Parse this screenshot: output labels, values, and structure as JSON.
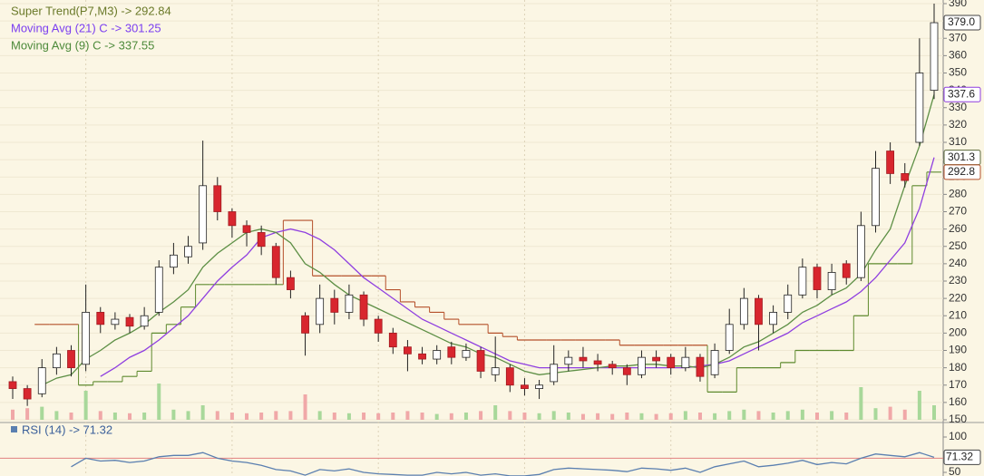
{
  "chart_data": {
    "type": "candlestick",
    "ylim": [
      150,
      390
    ],
    "yticks": [
      150,
      160,
      170,
      180,
      190,
      200,
      210,
      220,
      230,
      240,
      250,
      260,
      270,
      280,
      290,
      300,
      310,
      320,
      330,
      340,
      350,
      360,
      370,
      380,
      390
    ],
    "up_color": "#ffffff",
    "down_color": "#d8262e",
    "open": [
      172,
      168,
      165,
      180,
      190,
      182,
      212,
      205,
      209,
      204,
      212,
      238,
      244,
      252,
      285,
      270,
      262,
      258,
      250,
      232,
      210,
      205,
      220,
      212,
      222,
      208,
      200,
      192,
      188,
      185,
      192,
      186,
      190,
      176,
      180,
      170,
      168,
      172,
      182,
      186,
      184,
      182,
      180,
      176,
      186,
      186,
      180,
      186,
      176,
      190,
      205,
      220,
      205,
      212,
      222,
      238,
      225,
      240,
      232,
      262,
      305,
      292,
      310,
      340
    ],
    "high": [
      175,
      170,
      185,
      192,
      193,
      228,
      215,
      212,
      211,
      215,
      242,
      252,
      256,
      311,
      290,
      272,
      265,
      262,
      252,
      236,
      212,
      228,
      225,
      228,
      224,
      210,
      203,
      196,
      192,
      193,
      195,
      194,
      192,
      198,
      182,
      174,
      173,
      193,
      190,
      192,
      188,
      184,
      182,
      190,
      190,
      188,
      192,
      188,
      194,
      214,
      226,
      222,
      216,
      228,
      243,
      240,
      240,
      242,
      270,
      305,
      310,
      298,
      370,
      390
    ],
    "low": [
      162,
      158,
      163,
      176,
      175,
      178,
      200,
      202,
      200,
      202,
      210,
      234,
      240,
      248,
      265,
      255,
      250,
      245,
      228,
      220,
      187,
      200,
      205,
      208,
      204,
      195,
      188,
      178,
      182,
      182,
      182,
      184,
      174,
      172,
      166,
      164,
      162,
      170,
      178,
      180,
      178,
      176,
      170,
      174,
      180,
      176,
      178,
      172,
      174,
      188,
      202,
      190,
      200,
      208,
      220,
      220,
      222,
      228,
      230,
      258,
      286,
      284,
      308,
      335
    ],
    "close": [
      168,
      162,
      180,
      188,
      180,
      212,
      205,
      208,
      204,
      210,
      238,
      245,
      250,
      285,
      270,
      262,
      258,
      250,
      232,
      225,
      200,
      220,
      212,
      222,
      208,
      200,
      192,
      188,
      185,
      190,
      186,
      190,
      178,
      180,
      170,
      168,
      170,
      182,
      186,
      184,
      182,
      180,
      176,
      186,
      184,
      180,
      186,
      175,
      190,
      205,
      220,
      205,
      212,
      222,
      238,
      225,
      235,
      232,
      262,
      295,
      292,
      288,
      350,
      379
    ],
    "series": [
      {
        "name": "Super Trend(P7,M3) -> 292.84",
        "kind": "supertrend",
        "color": "#5e8a2e",
        "color_above": "#b5502a",
        "text_color": "#6b7a2a",
        "values": [
          null,
          null,
          205,
          205,
          205,
          170,
          172,
          172,
          175,
          178,
          200,
          205,
          215,
          228,
          228,
          228,
          228,
          228,
          228,
          265,
          265,
          233,
          233,
          233,
          233,
          233,
          225,
          218,
          215,
          212,
          208,
          205,
          205,
          200,
          198,
          196,
          196,
          196,
          196,
          196,
          196,
          196,
          193,
          193,
          193,
          193,
          193,
          193,
          166,
          166,
          180,
          180,
          180,
          183,
          190,
          190,
          190,
          190,
          210,
          240,
          240,
          240,
          285,
          292.84
        ]
      },
      {
        "name": "Moving Avg (21) C -> 301.25",
        "kind": "line",
        "color": "#8f3fe0",
        "text_color": "#7b3ff0",
        "values": [
          null,
          null,
          null,
          null,
          null,
          null,
          175,
          180,
          186,
          190,
          196,
          203,
          210,
          220,
          230,
          238,
          245,
          255,
          258,
          260,
          258,
          254,
          248,
          240,
          232,
          226,
          220,
          214,
          208,
          204,
          200,
          196,
          192,
          188,
          184,
          182,
          180,
          180,
          180,
          180,
          180,
          180,
          180,
          180,
          180,
          180,
          180,
          181,
          182,
          184,
          188,
          192,
          196,
          200,
          206,
          210,
          214,
          218,
          224,
          232,
          242,
          252,
          272,
          301.25
        ]
      },
      {
        "name": "Moving Avg (9) C -> 337.55",
        "kind": "line",
        "color": "#5d8f45",
        "text_color": "#4d8a3a",
        "values": [
          null,
          null,
          170,
          174,
          176,
          185,
          190,
          196,
          200,
          205,
          212,
          218,
          225,
          238,
          246,
          252,
          258,
          260,
          258,
          252,
          240,
          235,
          228,
          222,
          218,
          214,
          210,
          206,
          202,
          198,
          194,
          192,
          188,
          186,
          182,
          178,
          176,
          177,
          178,
          179,
          180,
          181,
          181,
          182,
          182,
          181,
          181,
          180,
          182,
          186,
          192,
          195,
          200,
          205,
          212,
          216,
          222,
          226,
          234,
          248,
          260,
          285,
          308,
          337.55
        ]
      }
    ],
    "price_labels": [
      {
        "value": 379,
        "label": "379.0",
        "color": "#444444"
      },
      {
        "value": 337.6,
        "label": "337.6",
        "color": "#8f3fe0"
      },
      {
        "value": 301.3,
        "label": "301.3",
        "color": "#5d6a3a"
      },
      {
        "value": 292.8,
        "label": "292.8",
        "color": "#b5502a"
      }
    ],
    "volume": {
      "up_color": "#a8d89a",
      "down_color": "#f0a8a8",
      "values": [
        14,
        16,
        18,
        12,
        10,
        40,
        12,
        10,
        9,
        10,
        50,
        14,
        12,
        20,
        12,
        10,
        9,
        10,
        12,
        12,
        35,
        12,
        10,
        9,
        10,
        9,
        10,
        12,
        10,
        8,
        9,
        10,
        12,
        20,
        12,
        10,
        9,
        12,
        10,
        8,
        9,
        8,
        10,
        9,
        8,
        9,
        12,
        10,
        9,
        12,
        14,
        12,
        10,
        12,
        14,
        10,
        12,
        10,
        45,
        16,
        18,
        14,
        40,
        20
      ]
    },
    "rsi": {
      "name": "RSI (14) -> 71.32",
      "color": "#5a7fb0",
      "level": 70,
      "level_color": "#e08080",
      "ylim": [
        45,
        115
      ],
      "yticks": [
        50,
        100
      ],
      "value_label": {
        "value": 71.32,
        "label": "71.32"
      },
      "values": [
        null,
        null,
        null,
        null,
        58,
        70,
        66,
        67,
        64,
        66,
        72,
        74,
        74,
        78,
        70,
        66,
        64,
        60,
        54,
        52,
        46,
        54,
        52,
        55,
        50,
        48,
        47,
        46,
        46,
        50,
        48,
        50,
        46,
        48,
        45,
        45,
        47,
        54,
        56,
        55,
        54,
        53,
        51,
        56,
        55,
        53,
        56,
        50,
        58,
        62,
        66,
        58,
        60,
        63,
        67,
        61,
        64,
        62,
        70,
        76,
        74,
        72,
        78,
        71.32
      ]
    }
  }
}
